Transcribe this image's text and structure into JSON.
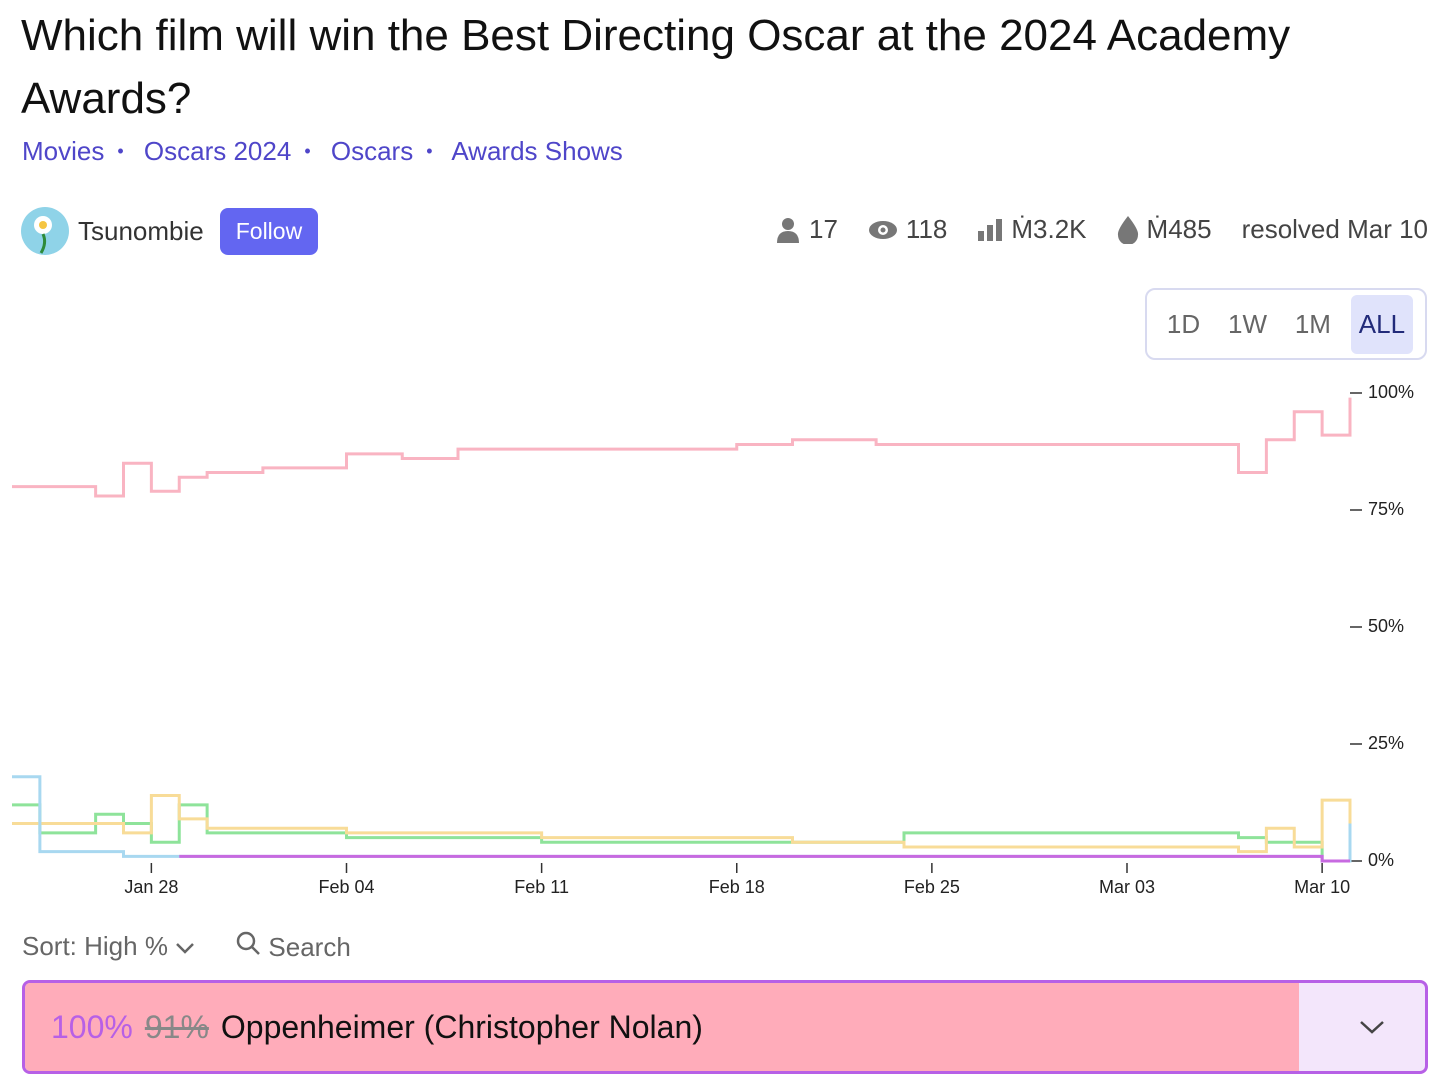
{
  "header": {
    "title": "Which film will win the Best Directing Oscar at the 2024 Academy Awards?",
    "tags": [
      "Movies",
      "Oscars 2024",
      "Oscars",
      "Awards Shows"
    ],
    "author": "Tsunombie",
    "follow": "Follow",
    "stats": {
      "traders": "17",
      "views": "118",
      "volume": "Ṁ3.2K",
      "liquidity": "Ṁ485",
      "status": "resolved Mar 10"
    }
  },
  "time_buttons": [
    "1D",
    "1W",
    "1M",
    "ALL"
  ],
  "active_button": 3,
  "chart_data": {
    "type": "line",
    "step": true,
    "x": [
      "Jan 23",
      "Jan 24",
      "Jan 26",
      "Jan 27",
      "Jan 28",
      "Jan 29",
      "Jan 30",
      "Feb 01",
      "Feb 04",
      "Feb 06",
      "Feb 08",
      "Feb 11",
      "Feb 18",
      "Feb 20",
      "Feb 23",
      "Feb 24",
      "Mar 03",
      "Mar 07",
      "Mar 08",
      "Mar 09",
      "Mar 10",
      "Mar 11"
    ],
    "xlim": [
      "Jan 23",
      "Mar 11"
    ],
    "xticks": [
      "Jan 28",
      "Feb 04",
      "Feb 11",
      "Feb 18",
      "Feb 25",
      "Mar 03",
      "Mar 10"
    ],
    "ylim": [
      0,
      100
    ],
    "yticks": [
      {
        "value": 0,
        "label": "0%"
      },
      {
        "value": 25,
        "label": "25%"
      },
      {
        "value": 50,
        "label": "50%"
      },
      {
        "value": 75,
        "label": "75%"
      },
      {
        "value": 100,
        "label": "100%"
      }
    ],
    "series": [
      {
        "color": "#f9b4c2",
        "values": [
          80,
          80,
          78,
          85,
          79,
          82,
          83,
          84,
          87,
          86,
          88,
          88,
          89,
          90,
          89,
          89,
          89,
          83,
          90,
          96,
          91,
          99
        ]
      },
      {
        "color": "#8ee39a",
        "values": [
          12,
          6,
          10,
          8,
          4,
          12,
          6,
          6,
          5,
          5,
          5,
          4,
          4,
          4,
          4,
          6,
          6,
          5,
          4,
          4,
          0,
          0
        ]
      },
      {
        "color": "#f8dc98",
        "values": [
          8,
          8,
          8,
          6,
          14,
          9,
          7,
          7,
          6,
          6,
          6,
          5,
          5,
          4,
          4,
          3,
          3,
          2,
          7,
          3,
          13,
          1
        ]
      },
      {
        "color": "#a8d8f0",
        "values": [
          18,
          2,
          2,
          1,
          1,
          1,
          1,
          1,
          1,
          1,
          1,
          1,
          1,
          1,
          1,
          1,
          1,
          1,
          1,
          1,
          0,
          8
        ]
      },
      {
        "color": "#c76ae0",
        "values": [
          null,
          null,
          null,
          null,
          null,
          1,
          1,
          1,
          1,
          1,
          1,
          1,
          1,
          1,
          1,
          1,
          1,
          1,
          1,
          1,
          0,
          0
        ]
      }
    ]
  },
  "controls": {
    "sort": "Sort: High %",
    "search": "Search"
  },
  "answers": [
    {
      "prob": {
        "value": 100,
        "label": "100%"
      },
      "old": {
        "value": 91,
        "label": "91%"
      },
      "name": "Oppenheimer (Christopher Nolan)"
    }
  ]
}
